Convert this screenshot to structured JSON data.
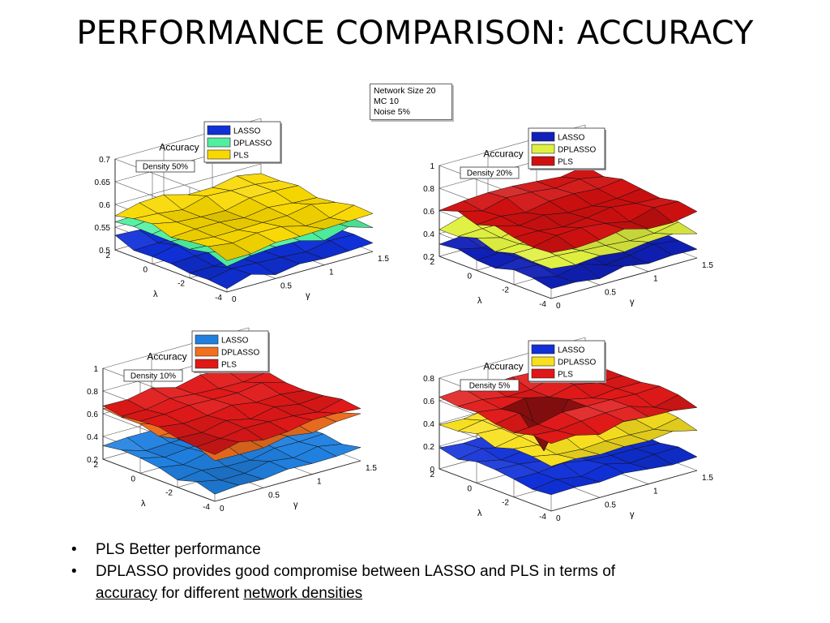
{
  "slide": {
    "title": "PERFORMANCE COMPARISON: ACCURACY",
    "info": [
      "Network Size 20",
      "MC 10",
      "Noise 5%"
    ],
    "bullets": {
      "b1": "PLS Better performance",
      "b2_pre": "DPLASSO provides good compromise between LASSO and PLS in terms of",
      "b2_accuracy": "accuracy",
      "b2_mid": " for different ",
      "b2_density": "network densities"
    }
  },
  "chart_data": [
    {
      "type": "surface",
      "title": "Accuracy",
      "annotation": "Density 50%",
      "xlabel": "γ",
      "ylabel": "λ",
      "zlabel": "",
      "xticks": [
        "0",
        "0.5",
        "1",
        "1.5"
      ],
      "yticks": [
        "-4",
        "-2",
        "0",
        "2"
      ],
      "zticks": [
        "0.5",
        "0.55",
        "0.6",
        "0.65",
        "0.7"
      ],
      "zlim": [
        0.5,
        0.7
      ],
      "legend": [
        "LASSO",
        "DPLASSO",
        "PLS"
      ],
      "series": [
        {
          "name": "LASSO",
          "approx_level": 0.52,
          "color": "#1030d8"
        },
        {
          "name": "DPLASSO",
          "approx_level": 0.565,
          "color": "#50f0a0"
        },
        {
          "name": "PLS",
          "approx_level": 0.58,
          "color": "#f8d800"
        }
      ]
    },
    {
      "type": "surface",
      "title": "Accuracy",
      "annotation": "Density 20%",
      "xlabel": "γ",
      "ylabel": "λ",
      "zlabel": "",
      "xticks": [
        "0",
        "0.5",
        "1",
        "1.5"
      ],
      "yticks": [
        "-4",
        "-2",
        "0",
        "2"
      ],
      "zticks": [
        "0.2",
        "0.4",
        "0.6",
        "0.8",
        "1"
      ],
      "zlim": [
        0.2,
        1
      ],
      "legend": [
        "LASSO",
        "DPLASSO",
        "PLS"
      ],
      "series": [
        {
          "name": "LASSO",
          "approx_level": 0.3,
          "color": "#1020b8"
        },
        {
          "name": "DPLASSO",
          "approx_level": 0.45,
          "color": "#e0f040"
        },
        {
          "name": "PLS",
          "approx_level": 0.62,
          "color": "#d01010"
        }
      ]
    },
    {
      "type": "surface",
      "title": "Accuracy",
      "annotation": "Density 10%",
      "xlabel": "γ",
      "ylabel": "λ",
      "zlabel": "",
      "xticks": [
        "0",
        "0.5",
        "1",
        "1.5"
      ],
      "yticks": [
        "-4",
        "-2",
        "0",
        "2"
      ],
      "zticks": [
        "0.2",
        "0.4",
        "0.6",
        "0.8",
        "1"
      ],
      "zlim": [
        0.2,
        1
      ],
      "legend": [
        "LASSO",
        "DPLASSO",
        "PLS"
      ],
      "series": [
        {
          "name": "LASSO",
          "approx_level": 0.3,
          "color": "#2080e0"
        },
        {
          "name": "DPLASSO",
          "approx_level": 0.6,
          "color": "#f07020"
        },
        {
          "name": "PLS",
          "approx_level": 0.66,
          "color": "#e01818"
        }
      ]
    },
    {
      "type": "surface",
      "title": "Accuracy",
      "annotation": "Density 5%",
      "xlabel": "γ",
      "ylabel": "λ",
      "zlabel": "",
      "xticks": [
        "0",
        "0.5",
        "1",
        "1.5"
      ],
      "yticks": [
        "-4",
        "-2",
        "0",
        "2"
      ],
      "zticks": [
        "0",
        "0.2",
        "0.4",
        "0.6",
        "0.8"
      ],
      "zlim": [
        0,
        0.8
      ],
      "legend": [
        "LASSO",
        "DPLASSO",
        "PLS"
      ],
      "series": [
        {
          "name": "LASSO",
          "approx_level": 0.15,
          "color": "#1030d8"
        },
        {
          "name": "DPLASSO",
          "approx_level": 0.4,
          "color": "#f8e020"
        },
        {
          "name": "PLS",
          "approx_level": 0.6,
          "color": "#e01818"
        }
      ]
    }
  ]
}
